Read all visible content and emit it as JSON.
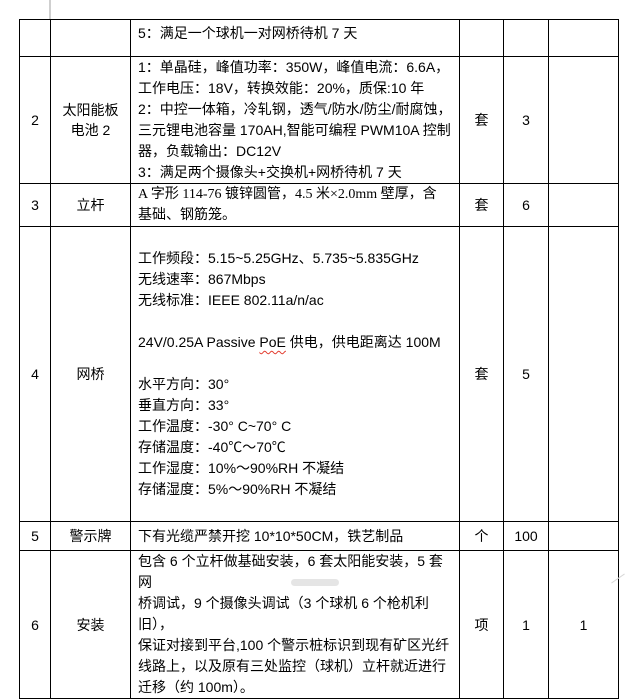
{
  "colors": {
    "table_border": "#000000",
    "text": "#000000",
    "spellcheck_underline": "#e23b2e",
    "page_background": "#ffffff"
  },
  "table": {
    "rows": [
      {
        "seq": "",
        "name": "",
        "spec": [
          "5：满足一个球机一对网桥待机 7 天"
        ],
        "unit": "",
        "qty": "",
        "extra": ""
      },
      {
        "seq": "2",
        "name": [
          "太阳能板",
          "电池 2"
        ],
        "spec": [
          "1：单晶硅，峰值功率：350W，峰值电流：6.6A，",
          "工作电压：18V，转换效能：20%，质保:10 年",
          "2：中控一体箱，冷轧钢，透气/防水/防尘/耐腐蚀，",
          "三元锂电池容量 170AH,智能可编程 PWM10A 控制",
          "器，负载输出：DC12V",
          "3：满足两个摄像头+交换机+网桥待机 7 天"
        ],
        "unit": "套",
        "qty": "3",
        "extra": ""
      },
      {
        "seq": "3",
        "name": "立杆",
        "spec": [
          "A 字形 114-76 镀锌圆管，4.5 米×2.0mm 壁厚，含",
          "基础、钢筋笼。"
        ],
        "unit": "套",
        "qty": "6",
        "extra": ""
      },
      {
        "seq": "4",
        "name": "网桥",
        "spec_top": [
          "工作频段：5.15~5.25GHz、5.735~5.835GHz",
          "无线速率：867Mbps",
          "无线标准：IEEE 802.11a/n/ac"
        ],
        "poe_line": {
          "before": "24V/0.25A Passive ",
          "word": "PoE",
          "after": " 供电，供电距离达 100M"
        },
        "spec_bottom": [
          "水平方向：30°",
          "垂直方向：33°",
          "工作温度：-30° C~70° C",
          "存储温度：-40℃～70℃",
          "工作湿度：10%～90%RH 不凝结",
          "存储湿度：5%～90%RH 不凝结"
        ],
        "unit": "套",
        "qty": "5",
        "extra": ""
      },
      {
        "seq": "5",
        "name": "警示牌",
        "spec": [
          "下有光缆严禁开挖 10*10*50CM，铁艺制品"
        ],
        "unit": "个",
        "qty": "100",
        "extra": ""
      },
      {
        "seq": "6",
        "name": "安装",
        "spec": [
          "包含 6 个立杆做基础安装，6 套太阳能安装，5 套网",
          "桥调试，9 个摄像头调试（3 个球机 6 个枪机利旧），",
          "保证对接到平台,100 个警示桩标识到现有矿区光纤",
          "线路上，以及原有三处监控（球机）立杆就近进行",
          "迁移（约 100m）。"
        ],
        "unit": "项",
        "qty": "1",
        "extra": "1"
      }
    ]
  }
}
